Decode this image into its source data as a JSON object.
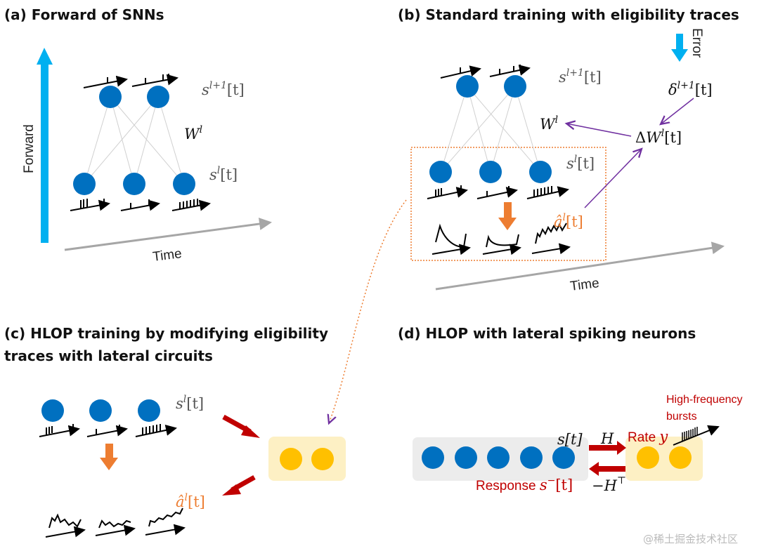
{
  "panel_a": {
    "title": "(a)   Forward of SNNs",
    "forward_label": "Forward",
    "time_label": "Time",
    "s_next": {
      "base": "s",
      "sup": "l+1",
      "arg": "[t]"
    },
    "weight": {
      "base": "W",
      "sup": "l"
    },
    "s_cur": {
      "base": "s",
      "sup": "l",
      "arg": "[t]"
    }
  },
  "panel_b": {
    "title": "(b)   Standard training with eligibility traces",
    "error_label": "Error",
    "time_label": "Time",
    "s_next": {
      "base": "s",
      "sup": "l+1",
      "arg": "[t]"
    },
    "delta": {
      "base": "δ",
      "sup": "l+1",
      "arg": "[t]"
    },
    "weight": {
      "base": "W",
      "sup": "l"
    },
    "delta_w": {
      "pre": "Δ",
      "base": "W",
      "sup": "l",
      "arg": "[t]"
    },
    "s_cur": {
      "base": "s",
      "sup": "l",
      "arg": "[t]"
    },
    "a_hat": {
      "base": "â",
      "sup": "l",
      "arg": "[t]"
    }
  },
  "panel_c": {
    "title_line1": "(c)   HLOP training by modifying eligibility",
    "title_line2": "traces with lateral circuits",
    "s_cur": {
      "base": "s",
      "sup": "l",
      "arg": "[t]"
    },
    "a_hat": {
      "base": "â",
      "sup": "l",
      "arg": "[t]"
    }
  },
  "panel_d": {
    "title": "(d)   HLOP with lateral spiking neurons",
    "s_label": "s[t]",
    "h_label": "H",
    "rate_label": "Rate ",
    "rate_var": "y",
    "response_label": "Response ",
    "response_var": {
      "base": "s",
      "sup": "−",
      "arg": "[t]"
    },
    "h_transpose": {
      "base": "−H",
      "sup": "⊤"
    },
    "bursts_line1": "High-frequency",
    "bursts_line2": "bursts"
  },
  "watermark": "@稀土掘金技术社区",
  "colors": {
    "neuron": "#0070c0",
    "lateral": "#ffc000",
    "forward": "#00b0f0",
    "orange": "#ed7d31",
    "purple": "#7030a0",
    "red": "#c00000"
  }
}
